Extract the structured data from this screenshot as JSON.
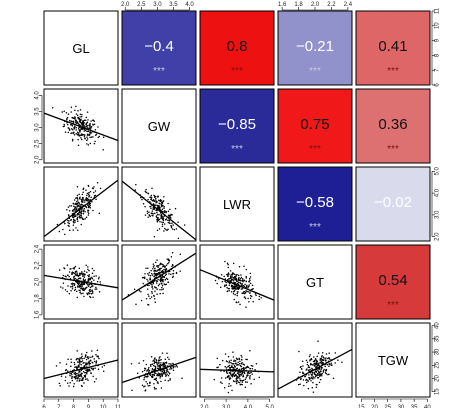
{
  "chart_data": {
    "type": "scatter",
    "variables": [
      "GL",
      "GW",
      "LWR",
      "GT",
      "TGW"
    ],
    "ranges": {
      "GL": [
        6,
        11
      ],
      "GW": [
        1.9,
        4.2
      ],
      "LWR": [
        1.8,
        5.2
      ],
      "GT": [
        1.55,
        2.45
      ],
      "TGW": [
        13,
        41
      ]
    },
    "axis_ticks": {
      "top": {
        "var": "GW",
        "ticks": [
          "2.0",
          "2.5",
          "3.0",
          "3.5",
          "4.0"
        ],
        "values": [
          2.0,
          2.5,
          3.0,
          3.5,
          4.0
        ]
      },
      "top2": {
        "var": "GT",
        "ticks": [
          "1.6",
          "1.8",
          "2.0",
          "2.2",
          "2.4"
        ],
        "values": [
          1.6,
          1.8,
          2.0,
          2.2,
          2.4
        ]
      },
      "bottom": [
        {
          "var": "GL",
          "ticks": [
            "6",
            "7",
            "8",
            "9",
            "10",
            "11"
          ],
          "values": [
            6,
            7,
            8,
            9,
            10,
            11
          ]
        },
        {
          "var": "LWR",
          "ticks": [
            "2.0",
            "3.0",
            "4.0",
            "5.0"
          ],
          "values": [
            2,
            3,
            4,
            5
          ]
        },
        {
          "var": "TGW",
          "ticks": [
            "15",
            "20",
            "25",
            "30",
            "35",
            "40"
          ],
          "values": [
            15,
            20,
            25,
            30,
            35,
            40
          ]
        }
      ],
      "left": [
        {
          "var": "GW",
          "ticks": [
            "2.0",
            "2.5",
            "3.0",
            "3.5",
            "4.0"
          ],
          "values": [
            2.0,
            2.5,
            3.0,
            3.5,
            4.0
          ]
        },
        {
          "var": "GT",
          "ticks": [
            "1.6",
            "1.8",
            "2.0",
            "2.2",
            "2.4"
          ],
          "values": [
            1.6,
            1.8,
            2.0,
            2.2,
            2.4
          ]
        }
      ],
      "right": [
        {
          "var": "GL",
          "ticks": [
            "6",
            "7",
            "8",
            "9",
            "10",
            "11"
          ],
          "values": [
            6,
            7,
            8,
            9,
            10,
            11
          ]
        },
        {
          "var": "LWR",
          "ticks": [
            "2.0",
            "3.0",
            "4.0",
            "5.0"
          ],
          "values": [
            2,
            3,
            4,
            5
          ]
        },
        {
          "var": "TGW",
          "ticks": [
            "15",
            "20",
            "25",
            "30",
            "35",
            "40"
          ],
          "values": [
            15,
            20,
            25,
            30,
            35,
            40
          ]
        }
      ]
    },
    "correlations": [
      {
        "row": 0,
        "col": 1,
        "label": "−0.4",
        "value": -0.4,
        "stars": "***",
        "color": "#4040a8"
      },
      {
        "row": 0,
        "col": 2,
        "label": "0.8",
        "value": 0.8,
        "stars": "***",
        "color": "#ee1111"
      },
      {
        "row": 0,
        "col": 3,
        "label": "−0.21",
        "value": -0.21,
        "stars": "***",
        "color": "#9191cc"
      },
      {
        "row": 0,
        "col": 4,
        "label": "0.41",
        "value": 0.41,
        "stars": "***",
        "color": "#de6666"
      },
      {
        "row": 1,
        "col": 2,
        "label": "−0.85",
        "value": -0.85,
        "stars": "***",
        "color": "#2a2a98"
      },
      {
        "row": 1,
        "col": 3,
        "label": "0.75",
        "value": 0.75,
        "stars": "***",
        "color": "#f01818"
      },
      {
        "row": 1,
        "col": 4,
        "label": "0.36",
        "value": 0.36,
        "stars": "***",
        "color": "#dd7070"
      },
      {
        "row": 2,
        "col": 3,
        "label": "−0.58",
        "value": -0.58,
        "stars": "***",
        "color": "#1f1f95"
      },
      {
        "row": 2,
        "col": 4,
        "label": "−0.02",
        "value": -0.02,
        "stars": "",
        "color": "#d9dbec"
      },
      {
        "row": 3,
        "col": 4,
        "label": "0.54",
        "value": 0.54,
        "stars": "***",
        "color": "#d63a3a"
      }
    ],
    "fit_lines": [
      {
        "row": 1,
        "col": 0,
        "y_at_xmin": 3.45,
        "y_at_xmax": 2.6
      },
      {
        "row": 2,
        "col": 0,
        "y_at_xmin": 2.0,
        "y_at_xmax": 4.6
      },
      {
        "row": 2,
        "col": 1,
        "y_at_xmin": 4.55,
        "y_at_xmax": 1.85
      },
      {
        "row": 3,
        "col": 0,
        "y_at_xmin": 2.08,
        "y_at_xmax": 1.93
      },
      {
        "row": 3,
        "col": 1,
        "y_at_xmin": 1.78,
        "y_at_xmax": 2.35
      },
      {
        "row": 3,
        "col": 2,
        "y_at_xmin": 2.15,
        "y_at_xmax": 1.78
      },
      {
        "row": 4,
        "col": 0,
        "y_at_xmin": 20,
        "y_at_xmax": 27
      },
      {
        "row": 4,
        "col": 1,
        "y_at_xmin": 18.5,
        "y_at_xmax": 28
      },
      {
        "row": 4,
        "col": 2,
        "y_at_xmin": 23.5,
        "y_at_xmax": 22.5
      },
      {
        "row": 4,
        "col": 3,
        "y_at_xmin": 16,
        "y_at_xmax": 31
      }
    ]
  }
}
